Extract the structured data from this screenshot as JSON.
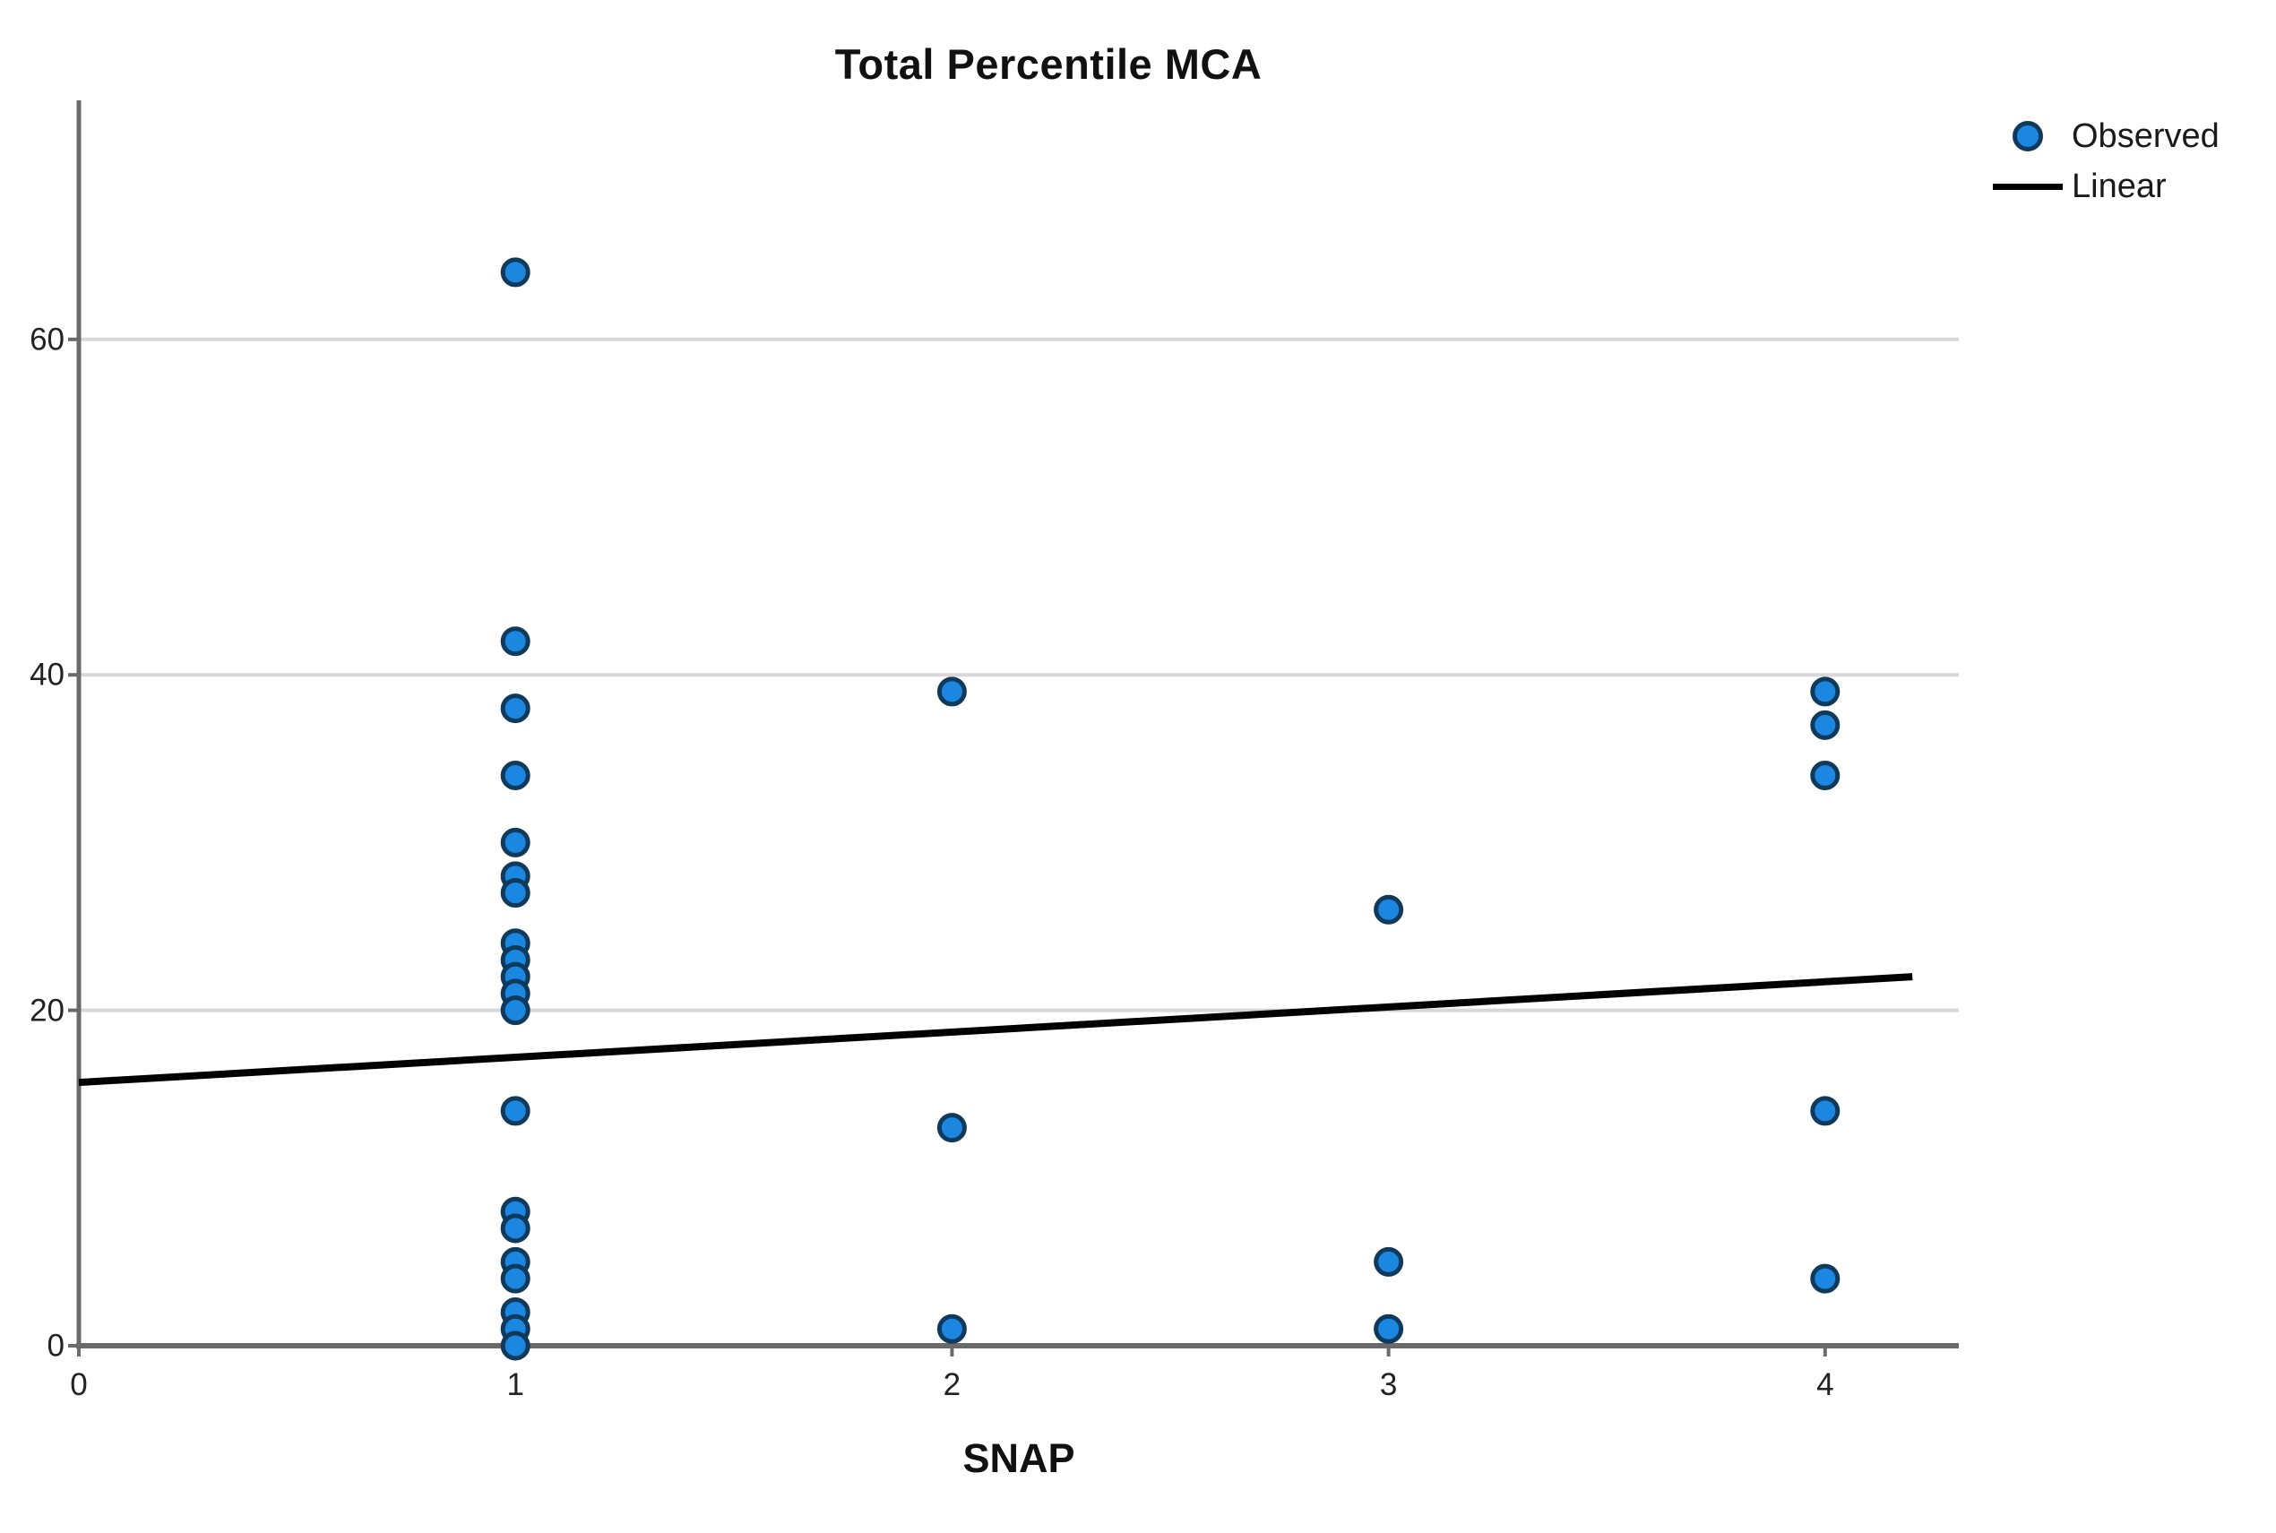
{
  "figure": {
    "title": "Total Percentile MCA",
    "xlabel": "SNAP"
  },
  "chart_data": {
    "type": "scatter",
    "title": "Total Percentile MCA",
    "xlabel": "SNAP",
    "ylabel": "",
    "x_ticks": [
      0,
      1,
      2,
      3,
      4
    ],
    "y_ticks": [
      0,
      20,
      40,
      60
    ],
    "xlim": [
      0,
      4.3
    ],
    "ylim": [
      0,
      74
    ],
    "grid": "horizontal-at-y-ticks",
    "legend_position": "outside-top-right",
    "series": [
      {
        "name": "Observed",
        "type": "scatter",
        "marker": "circle",
        "marker_fill": "#1b87e0",
        "marker_edge": "#103a5c",
        "points": [
          [
            1,
            64
          ],
          [
            1,
            42
          ],
          [
            1,
            38
          ],
          [
            1,
            34
          ],
          [
            1,
            30
          ],
          [
            1,
            28
          ],
          [
            1,
            27
          ],
          [
            1,
            24
          ],
          [
            1,
            23
          ],
          [
            1,
            22
          ],
          [
            1,
            21
          ],
          [
            1,
            20
          ],
          [
            1,
            14
          ],
          [
            1,
            8
          ],
          [
            1,
            7
          ],
          [
            1,
            5
          ],
          [
            1,
            4
          ],
          [
            1,
            2
          ],
          [
            1,
            1
          ],
          [
            1,
            0
          ],
          [
            2,
            39
          ],
          [
            2,
            13
          ],
          [
            2,
            1
          ],
          [
            3,
            26
          ],
          [
            3,
            5
          ],
          [
            3,
            1
          ],
          [
            4,
            39
          ],
          [
            4,
            37
          ],
          [
            4,
            34
          ],
          [
            4,
            14
          ],
          [
            4,
            4
          ]
        ]
      },
      {
        "name": "Linear",
        "type": "line",
        "color": "#000000",
        "endpoints": [
          [
            0,
            15.7
          ],
          [
            4.2,
            22.0
          ]
        ]
      }
    ],
    "colors": {
      "gridline": "#d8d8d8",
      "axis": "#6a6a6a",
      "text": "#1a1a1a",
      "background": "#ffffff"
    }
  }
}
